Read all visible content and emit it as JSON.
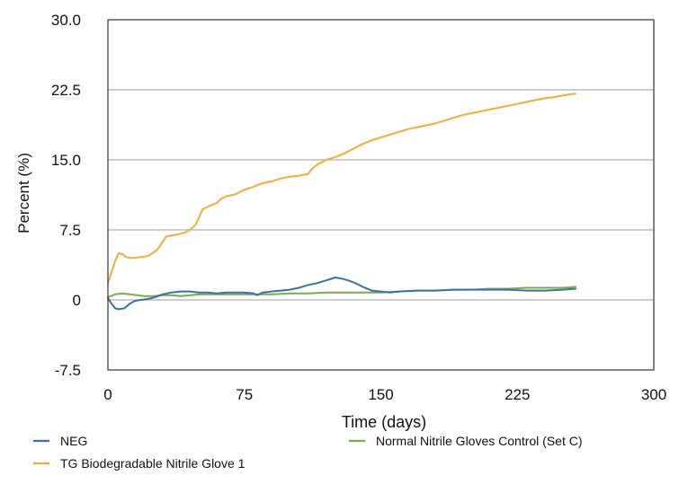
{
  "chart_data": {
    "type": "line",
    "title": "",
    "xlabel": "Time (days)",
    "ylabel": "Percent (%)",
    "xlim": [
      0,
      300
    ],
    "ylim": [
      -7.5,
      30.0
    ],
    "x_ticks": [
      0,
      75,
      150,
      225,
      300
    ],
    "y_ticks": [
      -7.5,
      0,
      7.5,
      15.0,
      22.5,
      30.0
    ],
    "x_tick_labels": [
      "0",
      "75",
      "150",
      "225",
      "300"
    ],
    "y_tick_labels": [
      "-7.5",
      "0",
      "7.5",
      "15.0",
      "22.5",
      "30.0"
    ],
    "grid": "horizontal",
    "legend": "bottom",
    "series": [
      {
        "name": "NEG",
        "color": "#3f6fa3",
        "x": [
          0,
          2,
          4,
          6,
          9,
          12,
          15,
          18,
          22,
          26,
          30,
          35,
          40,
          45,
          50,
          55,
          60,
          65,
          70,
          75,
          80,
          82,
          85,
          90,
          95,
          100,
          105,
          110,
          115,
          120,
          125,
          128,
          132,
          136,
          140,
          145,
          150,
          155,
          160,
          170,
          180,
          190,
          200,
          210,
          220,
          230,
          240,
          250,
          257
        ],
        "y": [
          0.2,
          -0.4,
          -0.9,
          -1.0,
          -0.9,
          -0.4,
          -0.1,
          0.0,
          0.1,
          0.3,
          0.6,
          0.8,
          0.9,
          0.9,
          0.8,
          0.8,
          0.7,
          0.8,
          0.8,
          0.8,
          0.7,
          0.5,
          0.8,
          0.9,
          1.0,
          1.1,
          1.3,
          1.6,
          1.8,
          2.1,
          2.4,
          2.3,
          2.1,
          1.8,
          1.4,
          1.0,
          0.9,
          0.8,
          0.9,
          1.0,
          1.0,
          1.1,
          1.1,
          1.1,
          1.1,
          1.0,
          1.0,
          1.1,
          1.2
        ]
      },
      {
        "name": "Normal Nitrile Gloves Control (Set C)",
        "color": "#77ad4d",
        "x": [
          0,
          4,
          8,
          12,
          16,
          20,
          25,
          30,
          35,
          40,
          45,
          50,
          60,
          70,
          80,
          90,
          100,
          110,
          120,
          130,
          140,
          150,
          160,
          170,
          180,
          190,
          200,
          210,
          220,
          230,
          240,
          250,
          257
        ],
        "y": [
          0.3,
          0.6,
          0.7,
          0.6,
          0.5,
          0.4,
          0.4,
          0.5,
          0.5,
          0.4,
          0.5,
          0.6,
          0.6,
          0.6,
          0.6,
          0.6,
          0.7,
          0.7,
          0.8,
          0.8,
          0.8,
          0.8,
          0.9,
          1.0,
          1.0,
          1.1,
          1.1,
          1.2,
          1.2,
          1.3,
          1.3,
          1.3,
          1.4
        ]
      },
      {
        "name": "TG Biodegradable Nitrile Glove 1",
        "color": "#f0ad3c",
        "x": [
          0,
          2,
          4,
          6,
          8,
          10,
          12,
          15,
          18,
          22,
          26,
          28,
          30,
          32,
          35,
          38,
          40,
          42,
          45,
          48,
          50,
          52,
          55,
          60,
          62,
          65,
          70,
          72,
          75,
          78,
          80,
          82,
          85,
          90,
          95,
          100,
          105,
          110,
          112,
          115,
          118,
          120,
          125,
          130,
          135,
          140,
          145,
          150,
          155,
          160,
          165,
          170,
          175,
          180,
          185,
          190,
          195,
          200,
          205,
          210,
          215,
          220,
          225,
          230,
          235,
          240,
          245,
          250,
          257
        ],
        "y": [
          1.8,
          3.0,
          4.2,
          5.0,
          4.9,
          4.6,
          4.5,
          4.5,
          4.6,
          4.7,
          5.2,
          5.6,
          6.2,
          6.8,
          6.9,
          7.0,
          7.1,
          7.2,
          7.5,
          8.0,
          8.8,
          9.7,
          10.0,
          10.4,
          10.8,
          11.1,
          11.3,
          11.5,
          11.8,
          12.0,
          12.1,
          12.3,
          12.5,
          12.7,
          13.0,
          13.2,
          13.3,
          13.5,
          14.0,
          14.5,
          14.8,
          15.0,
          15.3,
          15.7,
          16.2,
          16.7,
          17.1,
          17.4,
          17.7,
          18.0,
          18.3,
          18.5,
          18.7,
          18.9,
          19.2,
          19.5,
          19.8,
          20.0,
          20.2,
          20.4,
          20.6,
          20.8,
          21.0,
          21.2,
          21.4,
          21.6,
          21.7,
          21.9,
          22.1
        ]
      }
    ]
  }
}
